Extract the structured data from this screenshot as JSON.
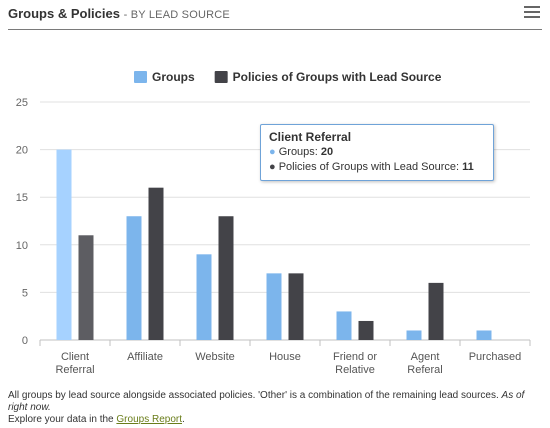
{
  "header": {
    "title": "Groups & Policies",
    "subtitle": "- BY LEAD SOURCE",
    "menu_icon": "hamburger-menu-icon"
  },
  "chart_data": {
    "type": "bar",
    "categories": [
      "Client Referral",
      "Affiliate",
      "Website",
      "House",
      "Friend or Relative",
      "Agent Referal",
      "Purchased"
    ],
    "series": [
      {
        "name": "Groups",
        "values": [
          20,
          13,
          9,
          7,
          3,
          1,
          1
        ],
        "color": "#7cb5ec"
      },
      {
        "name": "Policies of Groups with Lead Source",
        "values": [
          11,
          16,
          13,
          7,
          2,
          6,
          0
        ],
        "color": "#434348"
      }
    ],
    "ylim": [
      0,
      25
    ],
    "yticks": [
      0,
      5,
      10,
      15,
      20,
      25
    ],
    "grid": true,
    "legend": "top-center",
    "hovered_category": 0
  },
  "tooltip": {
    "title": "Client Referral",
    "row1_label": "Groups:",
    "row1_value": "20",
    "row2_label": "Policies of Groups with Lead Source:",
    "row2_value": "11"
  },
  "footer": {
    "text": "All groups by lead source alongside associated policies. 'Other' is a combination of the remaining lead sources.",
    "as_of": "As of right now.",
    "explore_prefix": "Explore your data in the",
    "link_text": "Groups Report",
    "explore_suffix": "."
  }
}
